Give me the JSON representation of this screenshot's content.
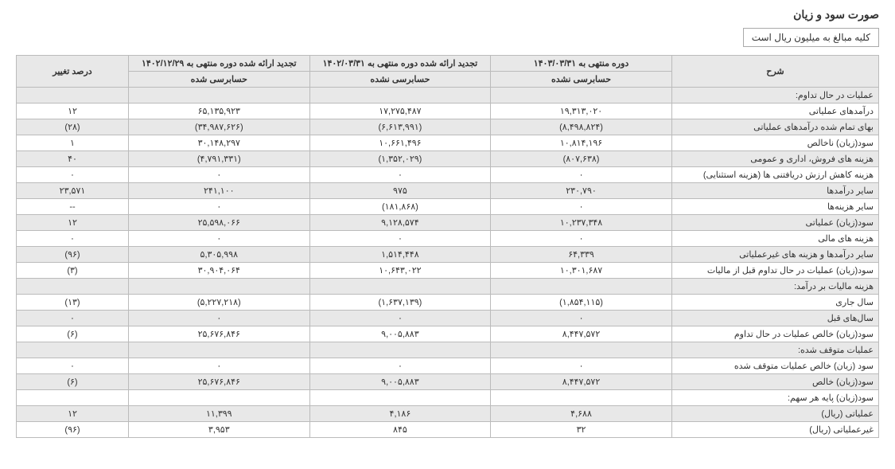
{
  "title": "صورت سود و زیان",
  "subtitle": "کلیه مبالغ به میلیون ریال است",
  "columns": {
    "desc": "شرح",
    "col1": "دوره منتهی به ۱۴۰۳/۰۳/۳۱",
    "col1_sub": "حسابرسی نشده",
    "col2": "تجدید ارائه شده دوره منتهی به ۱۴۰۲/۰۳/۳۱",
    "col2_sub": "حسابرسی نشده",
    "col3": "تجدید ارائه شده دوره منتهی به ۱۴۰۲/۱۲/۲۹",
    "col3_sub": "حسابرسی شده",
    "pct": "درصد تغییر"
  },
  "rows": [
    {
      "shade": true,
      "desc": "عملیات در حال تداوم:",
      "c1": "",
      "c2": "",
      "c3": "",
      "pct": ""
    },
    {
      "shade": false,
      "desc": "درآمدهای عملیاتی",
      "c1": "۱۹,۳۱۳,۰۲۰",
      "c2": "۱۷,۲۷۵,۴۸۷",
      "c3": "۶۵,۱۳۵,۹۲۳",
      "pct": "۱۲"
    },
    {
      "shade": true,
      "desc": "بهای تمام شده درآمدهای عملیاتی",
      "c1": "(۸,۴۹۸,۸۲۴)",
      "c2": "(۶,۶۱۳,۹۹۱)",
      "c3": "(۳۴,۹۸۷,۶۲۶)",
      "pct": "(۲۸)"
    },
    {
      "shade": false,
      "desc": "سود(زیان) ناخالص",
      "c1": "۱۰,۸۱۴,۱۹۶",
      "c2": "۱۰,۶۶۱,۴۹۶",
      "c3": "۳۰,۱۴۸,۲۹۷",
      "pct": "۱"
    },
    {
      "shade": true,
      "desc": "هزینه های فروش، اداری و عمومی",
      "c1": "(۸۰۷,۶۳۸)",
      "c2": "(۱,۳۵۲,۰۲۹)",
      "c3": "(۴,۷۹۱,۳۳۱)",
      "pct": "۴۰"
    },
    {
      "shade": false,
      "desc": "هزینه کاهش ارزش دریافتنی ها (هزینه استثنایی)",
      "c1": "۰",
      "c2": "۰",
      "c3": "۰",
      "pct": "۰"
    },
    {
      "shade": true,
      "desc": "سایر درآمدها",
      "c1": "۲۳۰,۷۹۰",
      "c2": "۹۷۵",
      "c3": "۲۴۱,۱۰۰",
      "pct": "۲۳,۵۷۱"
    },
    {
      "shade": false,
      "desc": "سایر هزینه‌ها",
      "c1": "۰",
      "c2": "(۱۸۱,۸۶۸)",
      "c3": "۰",
      "pct": "--"
    },
    {
      "shade": true,
      "desc": "سود(زیان) عملیاتی",
      "c1": "۱۰,۲۳۷,۳۴۸",
      "c2": "۹,۱۲۸,۵۷۴",
      "c3": "۲۵,۵۹۸,۰۶۶",
      "pct": "۱۲"
    },
    {
      "shade": false,
      "desc": "هزینه های مالی",
      "c1": "۰",
      "c2": "۰",
      "c3": "۰",
      "pct": "۰"
    },
    {
      "shade": true,
      "desc": "سایر درآمدها و هزینه های غیرعملیاتی",
      "c1": "۶۴,۳۳۹",
      "c2": "۱,۵۱۴,۴۴۸",
      "c3": "۵,۳۰۵,۹۹۸",
      "pct": "(۹۶)"
    },
    {
      "shade": false,
      "desc": "سود(زیان) عملیات در حال تداوم قبل از مالیات",
      "c1": "۱۰,۳۰۱,۶۸۷",
      "c2": "۱۰,۶۴۳,۰۲۲",
      "c3": "۳۰,۹۰۴,۰۶۴",
      "pct": "(۳)"
    },
    {
      "shade": true,
      "desc": "هزینه مالیات بر درآمد:",
      "c1": "",
      "c2": "",
      "c3": "",
      "pct": ""
    },
    {
      "shade": false,
      "desc": "سال جاری",
      "c1": "(۱,۸۵۴,۱۱۵)",
      "c2": "(۱,۶۳۷,۱۳۹)",
      "c3": "(۵,۲۲۷,۲۱۸)",
      "pct": "(۱۳)"
    },
    {
      "shade": true,
      "desc": "سال‌های قبل",
      "c1": "۰",
      "c2": "۰",
      "c3": "۰",
      "pct": "۰"
    },
    {
      "shade": false,
      "desc": "سود(زیان) خالص عملیات در حال تداوم",
      "c1": "۸,۴۴۷,۵۷۲",
      "c2": "۹,۰۰۵,۸۸۳",
      "c3": "۲۵,۶۷۶,۸۴۶",
      "pct": "(۶)"
    },
    {
      "shade": true,
      "desc": "عملیات متوقف شده:",
      "c1": "",
      "c2": "",
      "c3": "",
      "pct": ""
    },
    {
      "shade": false,
      "desc": "سود (زیان) خالص عملیات متوقف شده",
      "c1": "۰",
      "c2": "۰",
      "c3": "۰",
      "pct": "۰"
    },
    {
      "shade": true,
      "desc": "سود(زیان) خالص",
      "c1": "۸,۴۴۷,۵۷۲",
      "c2": "۹,۰۰۵,۸۸۳",
      "c3": "۲۵,۶۷۶,۸۴۶",
      "pct": "(۶)"
    },
    {
      "shade": false,
      "desc": "سود(زیان) پایه هر سهم:",
      "c1": "",
      "c2": "",
      "c3": "",
      "pct": ""
    },
    {
      "shade": true,
      "desc": "عملیاتی (ریال)",
      "c1": "۴,۶۸۸",
      "c2": "۴,۱۸۶",
      "c3": "۱۱,۳۹۹",
      "pct": "۱۲"
    },
    {
      "shade": false,
      "desc": "غیرعملیاتی (ریال)",
      "c1": "۳۲",
      "c2": "۸۴۵",
      "c3": "۳,۹۵۳",
      "pct": "(۹۶)"
    }
  ]
}
